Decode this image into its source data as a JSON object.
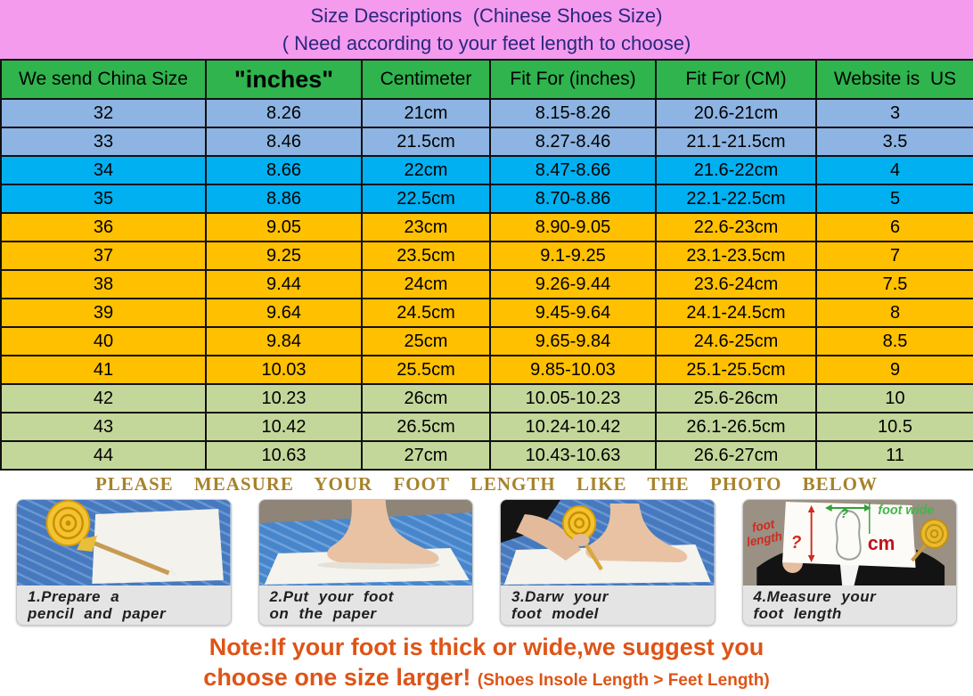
{
  "banner": {
    "title": "Size Descriptions  (Chinese Shoes Size)",
    "subtitle": "( Need according to your feet length to choose)"
  },
  "table": {
    "headers": [
      "We send China Size",
      "\"inches\"",
      "Centimeter",
      "Fit For (inches)",
      "Fit For (CM)",
      "Website is  US"
    ],
    "rows": [
      {
        "china_size": "32",
        "inches": "8.26",
        "centimeter": "21cm",
        "fit_inches": "8.15-8.26",
        "fit_cm": "20.6-21cm",
        "us": "3",
        "group": "steel"
      },
      {
        "china_size": "33",
        "inches": "8.46",
        "centimeter": "21.5cm",
        "fit_inches": "8.27-8.46",
        "fit_cm": "21.1-21.5cm",
        "us": "3.5",
        "group": "steel"
      },
      {
        "china_size": "34",
        "inches": "8.66",
        "centimeter": "22cm",
        "fit_inches": "8.47-8.66",
        "fit_cm": "21.6-22cm",
        "us": "4",
        "group": "cyan"
      },
      {
        "china_size": "35",
        "inches": "8.86",
        "centimeter": "22.5cm",
        "fit_inches": "8.70-8.86",
        "fit_cm": "22.1-22.5cm",
        "us": "5",
        "group": "cyan"
      },
      {
        "china_size": "36",
        "inches": "9.05",
        "centimeter": "23cm",
        "fit_inches": "8.90-9.05",
        "fit_cm": "22.6-23cm",
        "us": "6",
        "group": "amber"
      },
      {
        "china_size": "37",
        "inches": "9.25",
        "centimeter": "23.5cm",
        "fit_inches": "9.1-9.25",
        "fit_cm": "23.1-23.5cm",
        "us": "7",
        "group": "amber"
      },
      {
        "china_size": "38",
        "inches": "9.44",
        "centimeter": "24cm",
        "fit_inches": "9.26-9.44",
        "fit_cm": "23.6-24cm",
        "us": "7.5",
        "group": "amber"
      },
      {
        "china_size": "39",
        "inches": "9.64",
        "centimeter": "24.5cm",
        "fit_inches": "9.45-9.64",
        "fit_cm": "24.1-24.5cm",
        "us": "8",
        "group": "amber"
      },
      {
        "china_size": "40",
        "inches": "9.84",
        "centimeter": "25cm",
        "fit_inches": "9.65-9.84",
        "fit_cm": "24.6-25cm",
        "us": "8.5",
        "group": "amber"
      },
      {
        "china_size": "41",
        "inches": "10.03",
        "centimeter": "25.5cm",
        "fit_inches": "9.85-10.03",
        "fit_cm": "25.1-25.5cm",
        "us": "9",
        "group": "amber"
      },
      {
        "china_size": "42",
        "inches": "10.23",
        "centimeter": "26cm",
        "fit_inches": "10.05-10.23",
        "fit_cm": "25.6-26cm",
        "us": "10",
        "group": "olive"
      },
      {
        "china_size": "43",
        "inches": "10.42",
        "centimeter": "26.5cm",
        "fit_inches": "10.24-10.42",
        "fit_cm": "26.1-26.5cm",
        "us": "10.5",
        "group": "olive"
      },
      {
        "china_size": "44",
        "inches": "10.63",
        "centimeter": "27cm",
        "fit_inches": "10.43-10.63",
        "fit_cm": "26.6-27cm",
        "us": "11",
        "group": "olive"
      }
    ]
  },
  "measure_title": "PLEASE MEASURE YOUR FOOT LENGTH LIKE THE PHOTO BELOW",
  "photos": {
    "items": [
      {
        "caption_line1": "1.Prepare a",
        "caption_line2": "pencil and paper"
      },
      {
        "caption_line1": "2.Put your foot",
        "caption_line2": "on the paper"
      },
      {
        "caption_line1": "3.Darw your",
        "caption_line2": "foot model"
      },
      {
        "caption_line1": "4.Measure your",
        "caption_line2": "foot length"
      }
    ],
    "photo4_labels": {
      "foot_length_1": "foot",
      "foot_length_2": "length",
      "length_q": "?",
      "cm": "cm",
      "wide_q": "?",
      "foot_wide": "foot wide"
    }
  },
  "note": {
    "line1": "Note:If your foot is thick or wide,we suggest you",
    "line2_main": "choose one size larger!",
    "line2_detail": "(Shoes Insole Length > Feet Length)"
  },
  "colors": {
    "banner_pink": "#F49BEE",
    "title_navy": "#28287D",
    "header_green": "#2FB44E",
    "row_steel_blue": "#8DB4E2",
    "row_cyan": "#00B0F0",
    "row_amber": "#FFC000",
    "row_olive_green": "#C4D79B",
    "measure_brown": "#A6832B",
    "note_orange": "#DE5417"
  }
}
